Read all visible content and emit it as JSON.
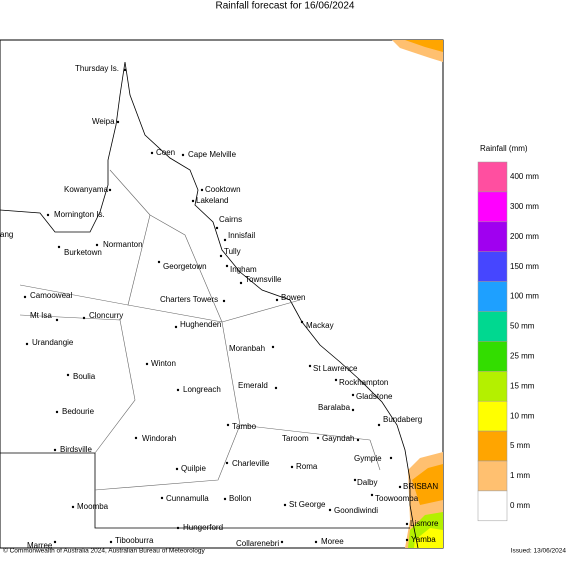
{
  "title": "Rainfall forecast for 16/06/2024",
  "legend": {
    "title": "Rainfall (mm)",
    "items": [
      {
        "label": "400 mm",
        "color": "#ff4fa0"
      },
      {
        "label": "300 mm",
        "color": "#ff00ff"
      },
      {
        "label": "200 mm",
        "color": "#a000f0"
      },
      {
        "label": "150 mm",
        "color": "#4646ff"
      },
      {
        "label": "100 mm",
        "color": "#1ea0ff"
      },
      {
        "label": "50 mm",
        "color": "#00d890"
      },
      {
        "label": "25 mm",
        "color": "#33dd00"
      },
      {
        "label": "15 mm",
        "color": "#b4f000"
      },
      {
        "label": "10 mm",
        "color": "#ffff00"
      },
      {
        "label": "5 mm",
        "color": "#ffa500"
      },
      {
        "label": "1 mm",
        "color": "#ffc070"
      },
      {
        "label": "0 mm",
        "color": "#ffffff"
      }
    ]
  },
  "places": [
    "Thursday Is.",
    "Weipa",
    "Coen",
    "Cape Melville",
    "Kowanyama",
    "Cooktown",
    "Lakeland",
    "Mornington Is.",
    "Cairns",
    "Innisfail",
    "ang",
    "Normanton",
    "Burketown",
    "Tully",
    "Georgetown",
    "Ingham",
    "Townsville",
    "Camooweal",
    "Charters Towers",
    "Bowen",
    "Mt Isa",
    "Cloncurry",
    "Mackay",
    "Hughenden",
    "Urandangie",
    "Moranbah",
    "Winton",
    "St Lawrence",
    "Boulia",
    "Rockhampton",
    "Emerald",
    "Longreach",
    "Gladstone",
    "Bedourie",
    "Baralaba",
    "Bundaberg",
    "Tambo",
    "Windorah",
    "Taroom",
    "Gayndah",
    "Birdsville",
    "Gympie",
    "Charleville",
    "Quilpie",
    "Roma",
    "Dalby",
    "BRISBAN",
    "Toowoomba",
    "Cunnamulla",
    "Bollon",
    "Moomba",
    "St George",
    "Goondiwindi",
    "Hungerford",
    "Lismore",
    "Marree",
    "Tibooburra",
    "Collarenebri",
    "Moree",
    "Yamba"
  ],
  "footer": {
    "copyright": "© Commonwealth of Australia 2024, Australian Bureau of Meteorology",
    "issued": "Issued: 13/06/2024"
  }
}
